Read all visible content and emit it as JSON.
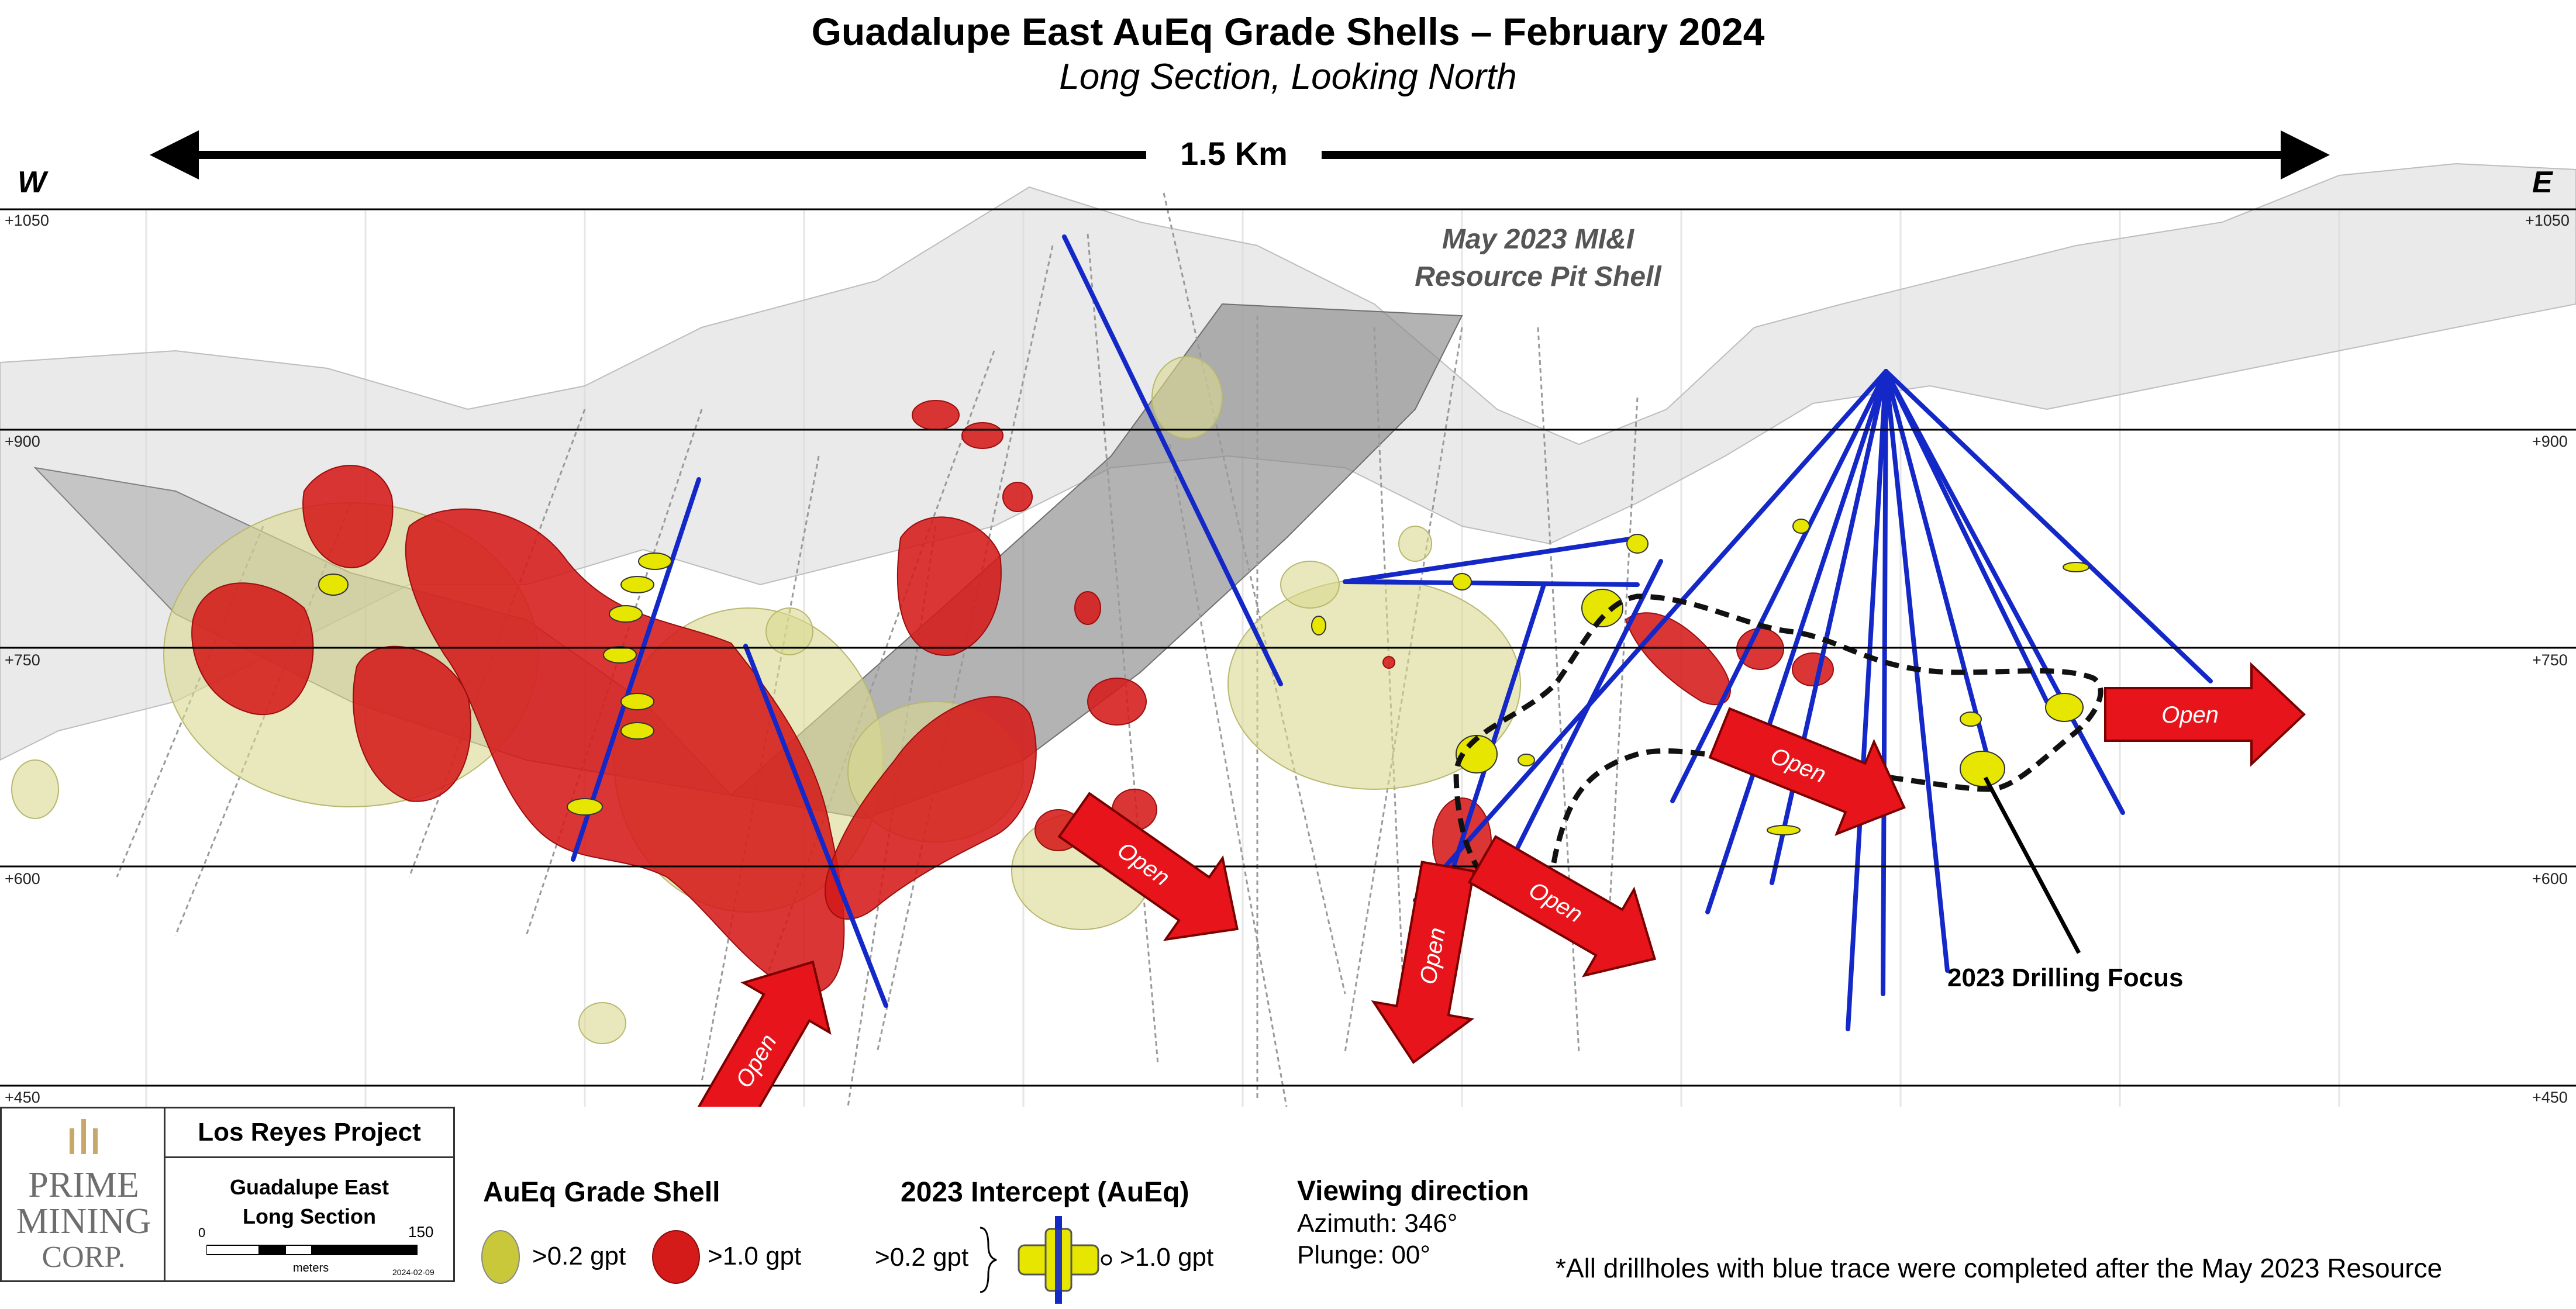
{
  "title": "Guadalupe East AuEq Grade Shells – February 2024",
  "subtitle": "Long Section, Looking North",
  "compass": {
    "west": "W",
    "east": "E"
  },
  "scale_bar_label": "1.5 Km",
  "elevations": [
    "+1050",
    "+900",
    "+750",
    "+600",
    "+450"
  ],
  "pit_shell_label": [
    "May 2023 MI&I",
    "Resource Pit Shell"
  ],
  "open_label": "Open",
  "focus_label": "2023 Drilling Focus",
  "logo": {
    "line1": "PRIME",
    "line2": "MINING",
    "line3": "CORP."
  },
  "project": {
    "name": "Los Reyes Project",
    "section_line1": "Guadalupe East",
    "section_line2": "Long Section",
    "scale_start": "0",
    "scale_end": "150",
    "scale_units": "meters",
    "date": "2024-02-09"
  },
  "legend": {
    "grade_shell_title": "AuEq Grade Shell",
    "low_grade": ">0.2 gpt",
    "high_grade": ">1.0 gpt",
    "intercept_title": "2023 Intercept (AuEq)",
    "intercept_low": ">0.2 gpt",
    "intercept_high": ">1.0 gpt",
    "view_title": "Viewing direction",
    "azimuth": "Azimuth: 346°",
    "plunge": "Plunge: 00°"
  },
  "note": "*All drillholes with blue trace were completed after the May 2023 Resource",
  "colors": {
    "high_grade": "#d51a1a",
    "low_grade": "#d8d890",
    "blue_trace": "#1428c8",
    "yellow_intercept": "#e6e600"
  }
}
